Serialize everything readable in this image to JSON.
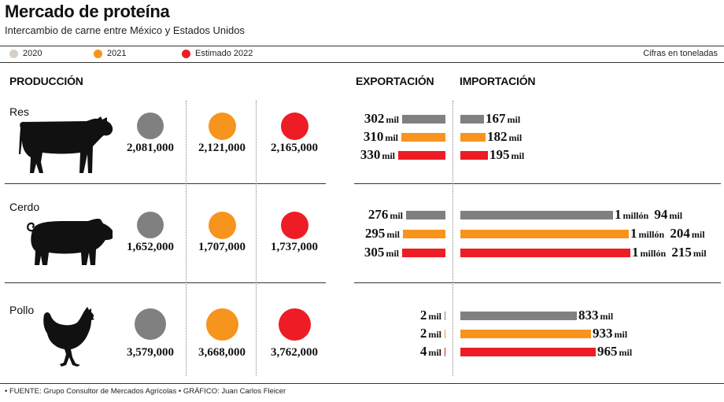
{
  "title": "Mercado de proteína",
  "subtitle": "Intercambio de carne entre México y Estados Unidos",
  "legend": [
    {
      "label": "2020",
      "color": "#d6d0c4"
    },
    {
      "label": "2021",
      "color": "#f7941d"
    },
    {
      "label": "Estimado 2022",
      "color": "#ee1c24"
    }
  ],
  "units_note": "Cifras en toneladas",
  "sections": {
    "production": "PRODUCCIÓN",
    "export": "EXPORTACIÓN",
    "import": "IMPORTACIÓN"
  },
  "colors": {
    "y2020": "#808080",
    "y2021": "#f7941d",
    "y2022": "#ee1c24"
  },
  "footer": "• FUENTE: Grupo Consultor de Mercados Agrícolas • GRÁFICO: Juan Carlos Fleicer",
  "chart_data": {
    "type": "bar",
    "years": [
      "2020",
      "2021",
      "Estimado 2022"
    ],
    "units": "toneladas",
    "rows": [
      {
        "name": "Res",
        "icon": "cow-icon",
        "production": [
          2081000,
          2121000,
          2165000
        ],
        "production_labels": [
          "2,081,000",
          "2,121,000",
          "2,165,000"
        ],
        "export": [
          302000,
          310000,
          330000
        ],
        "export_labels": [
          {
            "num": "302",
            "unit": "mil"
          },
          {
            "num": "310",
            "unit": "mil"
          },
          {
            "num": "330",
            "unit": "mil"
          }
        ],
        "import": [
          167000,
          182000,
          195000
        ],
        "import_labels": [
          {
            "num": "167",
            "unit": "mil"
          },
          {
            "num": "182",
            "unit": "mil"
          },
          {
            "num": "195",
            "unit": "mil"
          }
        ]
      },
      {
        "name": "Cerdo",
        "icon": "pig-icon",
        "production": [
          1652000,
          1707000,
          1737000
        ],
        "production_labels": [
          "1,652,000",
          "1,707,000",
          "1,737,000"
        ],
        "export": [
          276000,
          295000,
          305000
        ],
        "export_labels": [
          {
            "num": "276",
            "unit": "mil"
          },
          {
            "num": "295",
            "unit": "mil"
          },
          {
            "num": "305",
            "unit": "mil"
          }
        ],
        "import": [
          1094000,
          1204000,
          1215000
        ],
        "import_labels": [
          {
            "num": "1",
            "unit": "millón",
            "num2": "94",
            "unit2": "mil"
          },
          {
            "num": "1",
            "unit": "millón",
            "num2": "204",
            "unit2": "mil"
          },
          {
            "num": "1",
            "unit": "millón",
            "num2": "215",
            "unit2": "mil"
          }
        ]
      },
      {
        "name": "Pollo",
        "icon": "chicken-icon",
        "production": [
          3579000,
          3668000,
          3762000
        ],
        "production_labels": [
          "3,579,000",
          "3,668,000",
          "3,762,000"
        ],
        "export": [
          2000,
          2000,
          4000
        ],
        "export_labels": [
          {
            "num": "2",
            "unit": "mil"
          },
          {
            "num": "2",
            "unit": "mil"
          },
          {
            "num": "4",
            "unit": "mil"
          }
        ],
        "import": [
          833000,
          933000,
          965000
        ],
        "import_labels": [
          {
            "num": "833",
            "unit": "mil"
          },
          {
            "num": "933",
            "unit": "mil"
          },
          {
            "num": "965",
            "unit": "mil"
          }
        ]
      }
    ]
  }
}
